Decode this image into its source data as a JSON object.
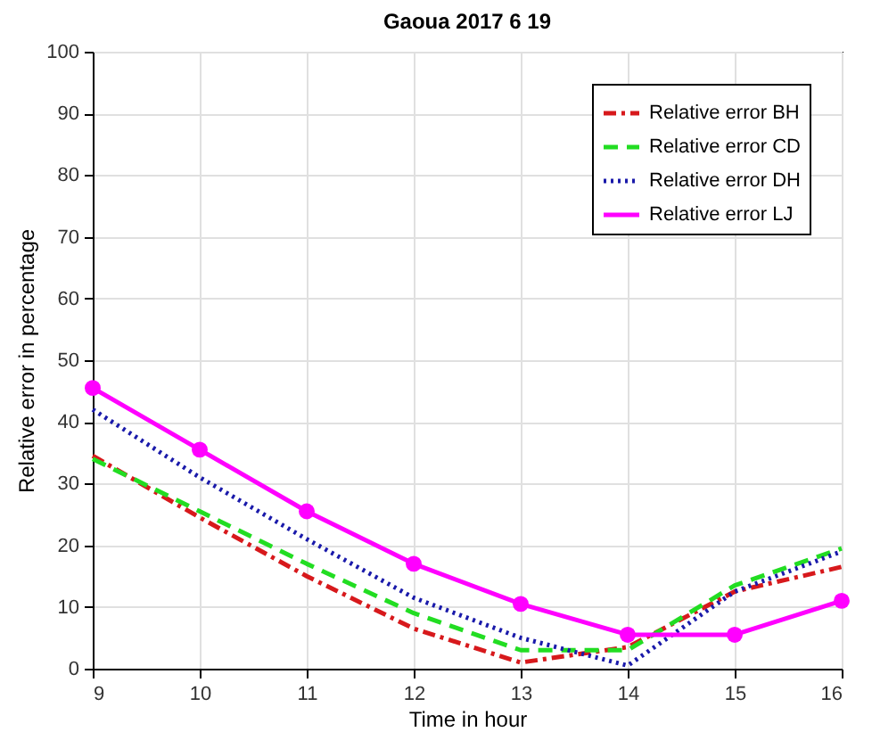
{
  "chart_data": {
    "type": "line",
    "title": "Gaoua 2017 6 19",
    "xlabel": "Time in hour",
    "ylabel": "Relative error in percentage",
    "x": [
      9,
      10,
      11,
      12,
      13,
      14,
      15,
      16
    ],
    "series": [
      {
        "name": "Relative error BH",
        "color": "#d7191c",
        "line_style": "dashdot",
        "marker": "none",
        "values": [
          34.5,
          24.5,
          15,
          6.5,
          1,
          3.5,
          12.5,
          16.5
        ]
      },
      {
        "name": "Relative error CD",
        "color": "#22dd22",
        "line_style": "dashed",
        "marker": "none",
        "values": [
          34,
          25.5,
          17,
          9,
          3,
          3,
          13.5,
          19.5
        ]
      },
      {
        "name": "Relative error DH",
        "color": "#1a1aaa",
        "line_style": "dotted",
        "marker": "none",
        "values": [
          42,
          31,
          21,
          11.5,
          5,
          0.5,
          12.5,
          19
        ]
      },
      {
        "name": "Relative error LJ",
        "color": "#ff00ff",
        "line_style": "solid",
        "marker": "circle",
        "values": [
          45.5,
          35.5,
          25.5,
          17,
          10.5,
          5.5,
          5.5,
          11
        ]
      }
    ],
    "xlim": [
      9,
      16
    ],
    "xticks": [
      9,
      10,
      11,
      12,
      13,
      14,
      15,
      16
    ],
    "ylim": [
      0,
      100
    ],
    "yticks": [
      0,
      10,
      20,
      30,
      40,
      50,
      60,
      70,
      80,
      90,
      100
    ],
    "grid": true,
    "legend": "top right"
  }
}
